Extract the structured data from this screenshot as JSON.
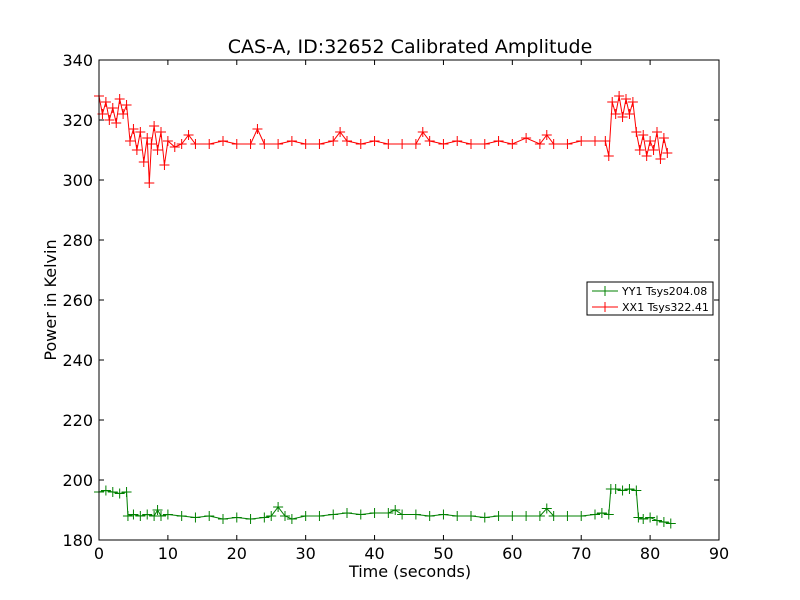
{
  "chart_data": {
    "type": "line",
    "title": "CAS-A, ID:32652 Calibrated Amplitude",
    "xlabel": "Time (seconds)",
    "ylabel": "Power in Kelvin",
    "xlim": [
      0,
      90
    ],
    "ylim": [
      180,
      340
    ],
    "xticks": [
      0,
      10,
      20,
      30,
      40,
      50,
      60,
      70,
      80,
      90
    ],
    "yticks": [
      180,
      200,
      220,
      240,
      260,
      280,
      300,
      320,
      340
    ],
    "xtick_labels": [
      "0",
      "10",
      "20",
      "30",
      "40",
      "50",
      "60",
      "70",
      "80",
      "90"
    ],
    "ytick_labels": [
      "180",
      "200",
      "220",
      "240",
      "260",
      "280",
      "300",
      "320",
      "340"
    ],
    "grid": false,
    "legend_position": "center-right",
    "marker": "+",
    "series": [
      {
        "name": "YY1 Tsys204.08",
        "color": "#008000",
        "x": [
          0,
          1,
          2,
          3,
          4,
          4.2,
          5,
          6,
          7,
          8,
          8.5,
          9,
          10,
          12,
          14,
          16,
          18,
          20,
          22,
          24,
          25,
          26,
          27,
          28,
          30,
          32,
          34,
          36,
          38,
          40,
          42,
          43,
          44,
          46,
          48,
          50,
          52,
          54,
          56,
          58,
          60,
          62,
          64,
          65,
          66,
          68,
          70,
          72,
          73,
          74,
          74.3,
          75,
          76,
          77,
          78,
          78.3,
          79,
          80,
          81,
          82,
          83
        ],
        "y": [
          196,
          196.5,
          196,
          195.5,
          196,
          188,
          188.5,
          188,
          188.5,
          188,
          190,
          188,
          188.5,
          188,
          187.5,
          188,
          187,
          187.5,
          187,
          187.5,
          188,
          191,
          188,
          187,
          188,
          188,
          188.5,
          189,
          188.5,
          189,
          189,
          190,
          188.5,
          188.5,
          188,
          188.5,
          188,
          188,
          187.5,
          188,
          188,
          188,
          188,
          190.5,
          188,
          188,
          188,
          188.5,
          189,
          188.5,
          197,
          197,
          196.5,
          197,
          196.5,
          187.5,
          187,
          187.5,
          186.5,
          186,
          185.5
        ]
      },
      {
        "name": "XX1 Tsys322.41",
        "color": "#ff0000",
        "x": [
          0,
          0.5,
          1,
          1.5,
          2,
          2.5,
          3,
          3.5,
          4,
          4.5,
          5,
          5.5,
          6,
          6.5,
          7,
          7.3,
          7.6,
          8,
          8.5,
          9,
          9.5,
          10,
          11,
          12,
          13,
          14,
          16,
          18,
          20,
          22,
          23,
          24,
          26,
          28,
          30,
          32,
          34,
          35,
          36,
          38,
          40,
          42,
          44,
          46,
          47,
          48,
          50,
          52,
          54,
          56,
          58,
          60,
          62,
          64,
          65,
          66,
          68,
          70,
          72,
          73.5,
          74,
          74.5,
          75,
          75.5,
          76,
          76.5,
          77,
          77.5,
          78,
          78.5,
          79,
          79.5,
          80,
          80.5,
          81,
          81.5,
          82,
          82.5
        ],
        "y": [
          328,
          322,
          326,
          320,
          324,
          319,
          327,
          322,
          325,
          313,
          317,
          310,
          316,
          306,
          314,
          299,
          312,
          318,
          310,
          316,
          305,
          313,
          311,
          312,
          315,
          312,
          312,
          313,
          312,
          312,
          317,
          312,
          312,
          313,
          312,
          312,
          313,
          316,
          313,
          312,
          313,
          312,
          312,
          312,
          316,
          313,
          312,
          313,
          312,
          312,
          313,
          312,
          314,
          312,
          315,
          312,
          312,
          313,
          313,
          313,
          308,
          326,
          322,
          328,
          321,
          327,
          322,
          326,
          316,
          310,
          315,
          308,
          313,
          310,
          316,
          307,
          314,
          309
        ]
      }
    ]
  }
}
